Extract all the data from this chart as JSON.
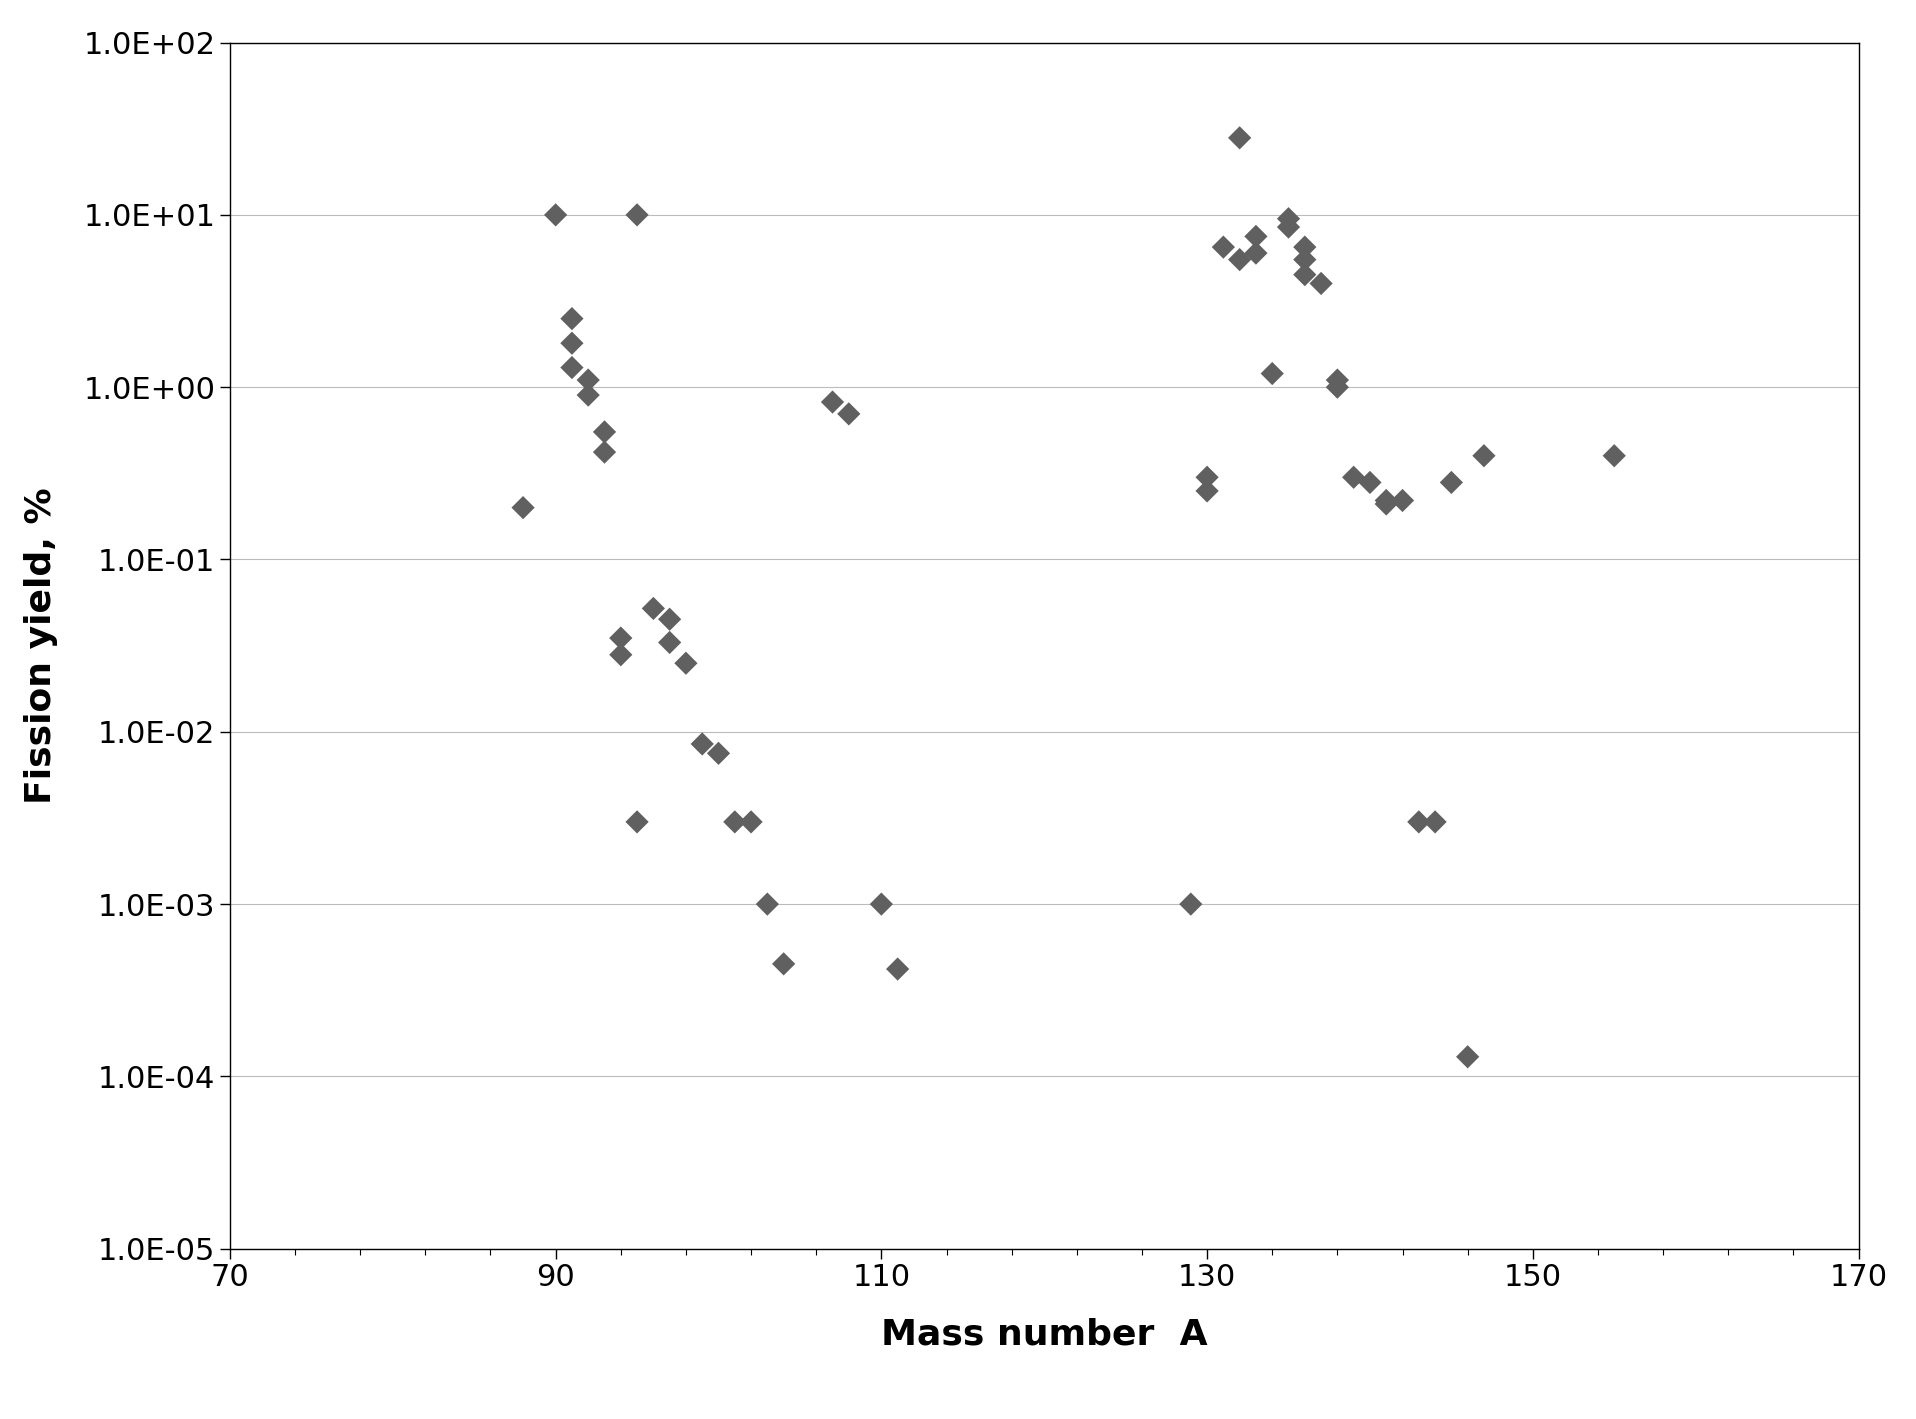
{
  "x": [
    88,
    90,
    95,
    91,
    91,
    91,
    92,
    92,
    93,
    93,
    94,
    94,
    95,
    96,
    97,
    97,
    98,
    99,
    100,
    101,
    102,
    103,
    104,
    107,
    108,
    110,
    111,
    129,
    130,
    130,
    131,
    132,
    132,
    133,
    133,
    134,
    135,
    135,
    136,
    136,
    136,
    137,
    138,
    138,
    139,
    140,
    141,
    141,
    142,
    143,
    144,
    145,
    146,
    147,
    155
  ],
  "y": [
    0.2,
    10.0,
    10.0,
    2.5,
    1.8,
    1.3,
    1.1,
    0.9,
    0.55,
    0.42,
    0.035,
    0.028,
    0.003,
    0.052,
    0.045,
    0.033,
    0.025,
    0.0085,
    0.0075,
    0.003,
    0.003,
    0.001,
    0.00045,
    0.82,
    0.7,
    0.001,
    0.00042,
    0.001,
    0.3,
    0.25,
    6.5,
    28.0,
    5.5,
    7.5,
    6.0,
    1.2,
    9.5,
    8.5,
    6.5,
    5.5,
    4.5,
    4.0,
    1.1,
    1.0,
    0.3,
    0.28,
    0.22,
    0.21,
    0.22,
    0.003,
    0.003,
    0.28,
    0.00013,
    0.4,
    0.4
  ],
  "xlabel": "Mass number  A",
  "ylabel": "Fission yield, %",
  "xlim": [
    70,
    170
  ],
  "marker_color": "#606060",
  "marker_size": 140,
  "background_color": "#ffffff",
  "grid_color": "#bbbbbb",
  "ytick_labels": [
    "1.0E-05",
    "1.0E-04",
    "1.0E-03",
    "1.0E-02",
    "1.0E-01",
    "1.0E+00",
    "1.0E+01",
    "1.0E+02"
  ],
  "ytick_values": [
    1e-05,
    0.0001,
    0.001,
    0.01,
    0.1,
    1.0,
    10.0,
    100.0
  ],
  "xtick_values": [
    70,
    90,
    110,
    130,
    150,
    170
  ],
  "xlabel_fontsize": 26,
  "ylabel_fontsize": 26,
  "tick_fontsize": 22
}
